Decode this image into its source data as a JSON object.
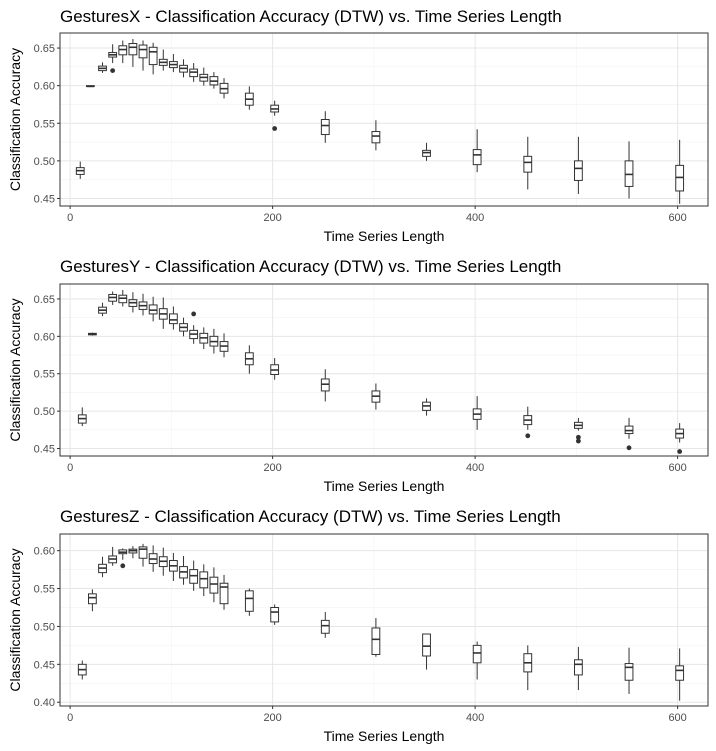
{
  "chart_data": [
    {
      "type": "boxplot",
      "title": "GesturesX - Classification Accuracy (DTW) vs. Time Series Length",
      "xlabel": "Time Series Length",
      "ylabel": "Classification Accuracy",
      "xlim": [
        -10,
        630
      ],
      "ylim": [
        0.44,
        0.67
      ],
      "xticks": [
        0,
        200,
        400,
        600
      ],
      "yticks": [
        0.45,
        0.5,
        0.55,
        0.6,
        0.65
      ],
      "grid": true,
      "boxes": [
        {
          "x": 10,
          "whisker_low": 0.476,
          "q1": 0.482,
          "median": 0.487,
          "q3": 0.491,
          "whisker_high": 0.499,
          "outliers": []
        },
        {
          "x": 20,
          "whisker_low": 0.598,
          "q1": 0.599,
          "median": 0.599,
          "q3": 0.6,
          "whisker_high": 0.6,
          "outliers": []
        },
        {
          "x": 32,
          "whisker_low": 0.617,
          "q1": 0.62,
          "median": 0.623,
          "q3": 0.626,
          "whisker_high": 0.631,
          "outliers": []
        },
        {
          "x": 42,
          "whisker_low": 0.63,
          "q1": 0.638,
          "median": 0.641,
          "q3": 0.644,
          "whisker_high": 0.655,
          "outliers": [
            0.62
          ]
        },
        {
          "x": 52,
          "whisker_low": 0.63,
          "q1": 0.641,
          "median": 0.648,
          "q3": 0.653,
          "whisker_high": 0.66,
          "outliers": []
        },
        {
          "x": 62,
          "whisker_low": 0.625,
          "q1": 0.641,
          "median": 0.651,
          "q3": 0.656,
          "whisker_high": 0.662,
          "outliers": []
        },
        {
          "x": 72,
          "whisker_low": 0.62,
          "q1": 0.637,
          "median": 0.648,
          "q3": 0.654,
          "whisker_high": 0.66,
          "outliers": []
        },
        {
          "x": 82,
          "whisker_low": 0.615,
          "q1": 0.628,
          "median": 0.645,
          "q3": 0.651,
          "whisker_high": 0.657,
          "outliers": []
        },
        {
          "x": 92,
          "whisker_low": 0.62,
          "q1": 0.627,
          "median": 0.631,
          "q3": 0.635,
          "whisker_high": 0.648,
          "outliers": []
        },
        {
          "x": 102,
          "whisker_low": 0.618,
          "q1": 0.624,
          "median": 0.628,
          "q3": 0.632,
          "whisker_high": 0.642,
          "outliers": []
        },
        {
          "x": 112,
          "whisker_low": 0.611,
          "q1": 0.618,
          "median": 0.623,
          "q3": 0.627,
          "whisker_high": 0.635,
          "outliers": []
        },
        {
          "x": 122,
          "whisker_low": 0.605,
          "q1": 0.612,
          "median": 0.618,
          "q3": 0.622,
          "whisker_high": 0.63,
          "outliers": []
        },
        {
          "x": 132,
          "whisker_low": 0.6,
          "q1": 0.606,
          "median": 0.611,
          "q3": 0.615,
          "whisker_high": 0.624,
          "outliers": []
        },
        {
          "x": 142,
          "whisker_low": 0.596,
          "q1": 0.601,
          "median": 0.606,
          "q3": 0.612,
          "whisker_high": 0.618,
          "outliers": []
        },
        {
          "x": 152,
          "whisker_low": 0.583,
          "q1": 0.59,
          "median": 0.596,
          "q3": 0.603,
          "whisker_high": 0.61,
          "outliers": []
        },
        {
          "x": 177,
          "whisker_low": 0.568,
          "q1": 0.574,
          "median": 0.582,
          "q3": 0.59,
          "whisker_high": 0.599,
          "outliers": []
        },
        {
          "x": 202,
          "whisker_low": 0.56,
          "q1": 0.565,
          "median": 0.569,
          "q3": 0.574,
          "whisker_high": 0.58,
          "outliers": [
            0.543
          ]
        },
        {
          "x": 252,
          "whisker_low": 0.524,
          "q1": 0.535,
          "median": 0.547,
          "q3": 0.555,
          "whisker_high": 0.566,
          "outliers": []
        },
        {
          "x": 302,
          "whisker_low": 0.514,
          "q1": 0.524,
          "median": 0.533,
          "q3": 0.539,
          "whisker_high": 0.554,
          "outliers": []
        },
        {
          "x": 352,
          "whisker_low": 0.5,
          "q1": 0.506,
          "median": 0.511,
          "q3": 0.514,
          "whisker_high": 0.524,
          "outliers": []
        },
        {
          "x": 402,
          "whisker_low": 0.485,
          "q1": 0.495,
          "median": 0.508,
          "q3": 0.515,
          "whisker_high": 0.542,
          "outliers": []
        },
        {
          "x": 452,
          "whisker_low": 0.462,
          "q1": 0.485,
          "median": 0.498,
          "q3": 0.506,
          "whisker_high": 0.532,
          "outliers": []
        },
        {
          "x": 502,
          "whisker_low": 0.456,
          "q1": 0.474,
          "median": 0.49,
          "q3": 0.5,
          "whisker_high": 0.532,
          "outliers": []
        },
        {
          "x": 552,
          "whisker_low": 0.45,
          "q1": 0.466,
          "median": 0.482,
          "q3": 0.5,
          "whisker_high": 0.526,
          "outliers": []
        },
        {
          "x": 602,
          "whisker_low": 0.443,
          "q1": 0.46,
          "median": 0.478,
          "q3": 0.494,
          "whisker_high": 0.528,
          "outliers": []
        }
      ]
    },
    {
      "type": "boxplot",
      "title": "GesturesY - Classification Accuracy (DTW) vs. Time Series Length",
      "xlabel": "Time Series Length",
      "ylabel": "Classification Accuracy",
      "xlim": [
        -10,
        630
      ],
      "ylim": [
        0.44,
        0.67
      ],
      "xticks": [
        0,
        200,
        400,
        600
      ],
      "yticks": [
        0.45,
        0.5,
        0.55,
        0.6,
        0.65
      ],
      "grid": true,
      "boxes": [
        {
          "x": 12,
          "whisker_low": 0.48,
          "q1": 0.484,
          "median": 0.49,
          "q3": 0.495,
          "whisker_high": 0.505,
          "outliers": []
        },
        {
          "x": 22,
          "whisker_low": 0.601,
          "q1": 0.602,
          "median": 0.603,
          "q3": 0.604,
          "whisker_high": 0.605,
          "outliers": []
        },
        {
          "x": 32,
          "whisker_low": 0.627,
          "q1": 0.631,
          "median": 0.635,
          "q3": 0.639,
          "whisker_high": 0.645,
          "outliers": []
        },
        {
          "x": 42,
          "whisker_low": 0.642,
          "q1": 0.647,
          "median": 0.652,
          "q3": 0.656,
          "whisker_high": 0.66,
          "outliers": []
        },
        {
          "x": 52,
          "whisker_low": 0.64,
          "q1": 0.645,
          "median": 0.651,
          "q3": 0.655,
          "whisker_high": 0.662,
          "outliers": []
        },
        {
          "x": 62,
          "whisker_low": 0.632,
          "q1": 0.64,
          "median": 0.645,
          "q3": 0.649,
          "whisker_high": 0.659,
          "outliers": []
        },
        {
          "x": 72,
          "whisker_low": 0.628,
          "q1": 0.636,
          "median": 0.641,
          "q3": 0.646,
          "whisker_high": 0.657,
          "outliers": []
        },
        {
          "x": 82,
          "whisker_low": 0.62,
          "q1": 0.63,
          "median": 0.635,
          "q3": 0.642,
          "whisker_high": 0.653,
          "outliers": []
        },
        {
          "x": 92,
          "whisker_low": 0.61,
          "q1": 0.623,
          "median": 0.63,
          "q3": 0.637,
          "whisker_high": 0.652,
          "outliers": []
        },
        {
          "x": 102,
          "whisker_low": 0.609,
          "q1": 0.617,
          "median": 0.622,
          "q3": 0.63,
          "whisker_high": 0.64,
          "outliers": []
        },
        {
          "x": 112,
          "whisker_low": 0.6,
          "q1": 0.607,
          "median": 0.612,
          "q3": 0.617,
          "whisker_high": 0.625,
          "outliers": []
        },
        {
          "x": 122,
          "whisker_low": 0.59,
          "q1": 0.597,
          "median": 0.603,
          "q3": 0.608,
          "whisker_high": 0.615,
          "outliers": [
            0.63
          ]
        },
        {
          "x": 132,
          "whisker_low": 0.583,
          "q1": 0.591,
          "median": 0.598,
          "q3": 0.604,
          "whisker_high": 0.612,
          "outliers": []
        },
        {
          "x": 142,
          "whisker_low": 0.577,
          "q1": 0.587,
          "median": 0.593,
          "q3": 0.6,
          "whisker_high": 0.61,
          "outliers": []
        },
        {
          "x": 152,
          "whisker_low": 0.572,
          "q1": 0.58,
          "median": 0.587,
          "q3": 0.593,
          "whisker_high": 0.604,
          "outliers": []
        },
        {
          "x": 177,
          "whisker_low": 0.55,
          "q1": 0.562,
          "median": 0.57,
          "q3": 0.578,
          "whisker_high": 0.588,
          "outliers": []
        },
        {
          "x": 202,
          "whisker_low": 0.542,
          "q1": 0.549,
          "median": 0.555,
          "q3": 0.562,
          "whisker_high": 0.571,
          "outliers": []
        },
        {
          "x": 252,
          "whisker_low": 0.513,
          "q1": 0.527,
          "median": 0.536,
          "q3": 0.543,
          "whisker_high": 0.556,
          "outliers": []
        },
        {
          "x": 302,
          "whisker_low": 0.502,
          "q1": 0.512,
          "median": 0.52,
          "q3": 0.527,
          "whisker_high": 0.537,
          "outliers": []
        },
        {
          "x": 352,
          "whisker_low": 0.494,
          "q1": 0.501,
          "median": 0.507,
          "q3": 0.512,
          "whisker_high": 0.517,
          "outliers": []
        },
        {
          "x": 402,
          "whisker_low": 0.475,
          "q1": 0.489,
          "median": 0.496,
          "q3": 0.503,
          "whisker_high": 0.52,
          "outliers": []
        },
        {
          "x": 452,
          "whisker_low": 0.475,
          "q1": 0.482,
          "median": 0.488,
          "q3": 0.494,
          "whisker_high": 0.506,
          "outliers": [
            0.467
          ]
        },
        {
          "x": 502,
          "whisker_low": 0.474,
          "q1": 0.477,
          "median": 0.481,
          "q3": 0.485,
          "whisker_high": 0.491,
          "outliers": [
            0.465,
            0.46
          ]
        },
        {
          "x": 552,
          "whisker_low": 0.463,
          "q1": 0.47,
          "median": 0.474,
          "q3": 0.48,
          "whisker_high": 0.491,
          "outliers": [
            0.451
          ]
        },
        {
          "x": 602,
          "whisker_low": 0.458,
          "q1": 0.464,
          "median": 0.47,
          "q3": 0.476,
          "whisker_high": 0.484,
          "outliers": [
            0.446
          ]
        }
      ]
    },
    {
      "type": "boxplot",
      "title": "GesturesZ - Classification Accuracy (DTW) vs. Time Series Length",
      "xlabel": "Time Series Length",
      "ylabel": "Classification Accuracy",
      "xlim": [
        -10,
        630
      ],
      "ylim": [
        0.395,
        0.622
      ],
      "xticks": [
        0,
        200,
        400,
        600
      ],
      "yticks": [
        0.4,
        0.45,
        0.5,
        0.55,
        0.6
      ],
      "grid": true,
      "boxes": [
        {
          "x": 12,
          "whisker_low": 0.43,
          "q1": 0.436,
          "median": 0.443,
          "q3": 0.45,
          "whisker_high": 0.455,
          "outliers": []
        },
        {
          "x": 22,
          "whisker_low": 0.52,
          "q1": 0.53,
          "median": 0.538,
          "q3": 0.543,
          "whisker_high": 0.549,
          "outliers": []
        },
        {
          "x": 32,
          "whisker_low": 0.565,
          "q1": 0.571,
          "median": 0.577,
          "q3": 0.582,
          "whisker_high": 0.592,
          "outliers": []
        },
        {
          "x": 42,
          "whisker_low": 0.58,
          "q1": 0.584,
          "median": 0.589,
          "q3": 0.593,
          "whisker_high": 0.605,
          "outliers": []
        },
        {
          "x": 52,
          "whisker_low": 0.588,
          "q1": 0.596,
          "median": 0.598,
          "q3": 0.601,
          "whisker_high": 0.603,
          "outliers": [
            0.58
          ]
        },
        {
          "x": 62,
          "whisker_low": 0.59,
          "q1": 0.597,
          "median": 0.6,
          "q3": 0.602,
          "whisker_high": 0.606,
          "outliers": []
        },
        {
          "x": 72,
          "whisker_low": 0.579,
          "q1": 0.59,
          "median": 0.602,
          "q3": 0.605,
          "whisker_high": 0.609,
          "outliers": []
        },
        {
          "x": 82,
          "whisker_low": 0.572,
          "q1": 0.583,
          "median": 0.589,
          "q3": 0.596,
          "whisker_high": 0.607,
          "outliers": []
        },
        {
          "x": 92,
          "whisker_low": 0.567,
          "q1": 0.579,
          "median": 0.586,
          "q3": 0.592,
          "whisker_high": 0.604,
          "outliers": []
        },
        {
          "x": 102,
          "whisker_low": 0.56,
          "q1": 0.573,
          "median": 0.58,
          "q3": 0.587,
          "whisker_high": 0.597,
          "outliers": []
        },
        {
          "x": 112,
          "whisker_low": 0.555,
          "q1": 0.564,
          "median": 0.572,
          "q3": 0.579,
          "whisker_high": 0.593,
          "outliers": []
        },
        {
          "x": 122,
          "whisker_low": 0.547,
          "q1": 0.557,
          "median": 0.567,
          "q3": 0.575,
          "whisker_high": 0.587,
          "outliers": []
        },
        {
          "x": 132,
          "whisker_low": 0.54,
          "q1": 0.551,
          "median": 0.563,
          "q3": 0.572,
          "whisker_high": 0.582,
          "outliers": []
        },
        {
          "x": 142,
          "whisker_low": 0.532,
          "q1": 0.544,
          "median": 0.556,
          "q3": 0.565,
          "whisker_high": 0.578,
          "outliers": []
        },
        {
          "x": 152,
          "whisker_low": 0.522,
          "q1": 0.53,
          "median": 0.552,
          "q3": 0.557,
          "whisker_high": 0.568,
          "outliers": []
        },
        {
          "x": 177,
          "whisker_low": 0.514,
          "q1": 0.52,
          "median": 0.537,
          "q3": 0.547,
          "whisker_high": 0.55,
          "outliers": []
        },
        {
          "x": 202,
          "whisker_low": 0.502,
          "q1": 0.506,
          "median": 0.519,
          "q3": 0.525,
          "whisker_high": 0.529,
          "outliers": []
        },
        {
          "x": 252,
          "whisker_low": 0.485,
          "q1": 0.491,
          "median": 0.501,
          "q3": 0.508,
          "whisker_high": 0.519,
          "outliers": []
        },
        {
          "x": 302,
          "whisker_low": 0.46,
          "q1": 0.463,
          "median": 0.483,
          "q3": 0.498,
          "whisker_high": 0.511,
          "outliers": []
        },
        {
          "x": 352,
          "whisker_low": 0.443,
          "q1": 0.461,
          "median": 0.474,
          "q3": 0.49,
          "whisker_high": 0.49,
          "outliers": []
        },
        {
          "x": 402,
          "whisker_low": 0.43,
          "q1": 0.452,
          "median": 0.465,
          "q3": 0.475,
          "whisker_high": 0.48,
          "outliers": []
        },
        {
          "x": 452,
          "whisker_low": 0.416,
          "q1": 0.44,
          "median": 0.452,
          "q3": 0.464,
          "whisker_high": 0.475,
          "outliers": []
        },
        {
          "x": 502,
          "whisker_low": 0.416,
          "q1": 0.436,
          "median": 0.45,
          "q3": 0.456,
          "whisker_high": 0.473,
          "outliers": []
        },
        {
          "x": 552,
          "whisker_low": 0.411,
          "q1": 0.429,
          "median": 0.446,
          "q3": 0.451,
          "whisker_high": 0.472,
          "outliers": []
        },
        {
          "x": 602,
          "whisker_low": 0.402,
          "q1": 0.429,
          "median": 0.442,
          "q3": 0.448,
          "whisker_high": 0.471,
          "outliers": []
        }
      ]
    }
  ]
}
